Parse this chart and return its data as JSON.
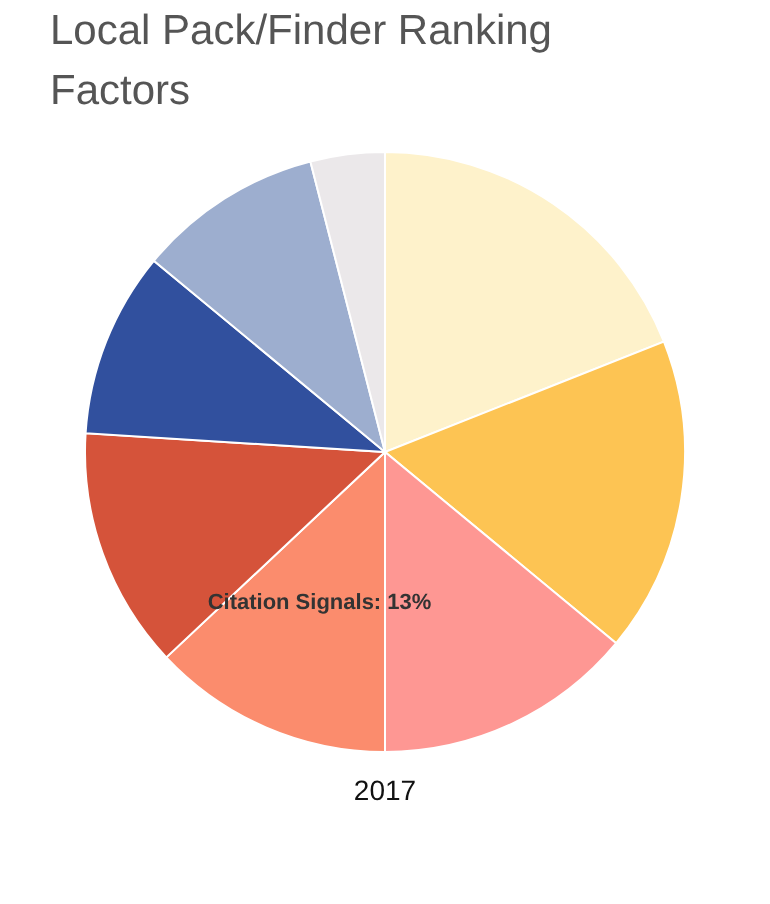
{
  "chart_data": {
    "type": "pie",
    "title": "Local Pack/Finder Ranking Factors",
    "categories": [
      null,
      null,
      null,
      "Citation Signals",
      null,
      null,
      null,
      null
    ],
    "values": [
      19,
      17,
      14,
      13,
      13,
      10,
      10,
      4
    ],
    "colors": [
      "#fef2cb",
      "#fdc453",
      "#fe9793",
      "#fb8c6d",
      "#d5533a",
      "#31509e",
      "#9daecf",
      "#ebe8ea"
    ],
    "value_labels": [
      null,
      null,
      null,
      "13%",
      null,
      null,
      null,
      null
    ],
    "annotations": [
      "2017"
    ],
    "legend": false
  }
}
